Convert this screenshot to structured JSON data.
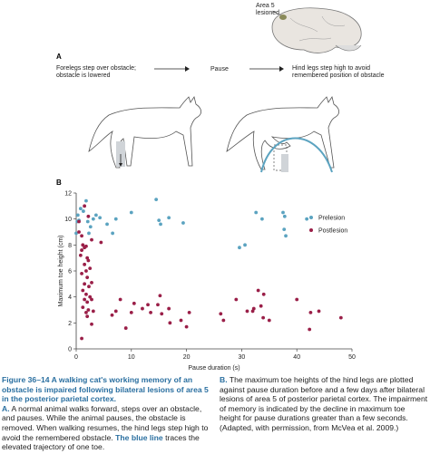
{
  "brain_label": [
    "Area 5",
    "lesioned"
  ],
  "panel_a": {
    "label": "A",
    "step1": [
      "Forelegs step over obstacle;",
      "obstacle is lowered"
    ],
    "pause": "Pause",
    "step2": [
      "Hind legs step high to avoid",
      "remembered position of obstacle"
    ]
  },
  "panel_b": {
    "label": "B"
  },
  "chart_data": {
    "type": "scatter",
    "x_label": "Pause duration (s)",
    "y_label": "Maximum toe height (cm)",
    "xlim": [
      0,
      50
    ],
    "ylim": [
      0,
      12
    ],
    "xticks": [
      0,
      10,
      20,
      30,
      40,
      50
    ],
    "yticks": [
      0,
      2,
      4,
      6,
      8,
      10,
      12
    ],
    "legend": "upper right",
    "series": [
      {
        "name": "Prelesion",
        "color": "#5ba3c0",
        "x": [
          0,
          0.2,
          0.3,
          0.5,
          0.8,
          1.3,
          1.8,
          2.1,
          2.3,
          2.6,
          3.1,
          3.6,
          4.3,
          5.6,
          6.6,
          7.2,
          10,
          14.5,
          15,
          15.3,
          16.8,
          19.4,
          29.6,
          30.6,
          32.6,
          33.7,
          37.5,
          37.7,
          37.8,
          38,
          41.8
        ],
        "y": [
          8.9,
          9.8,
          10.3,
          9.9,
          10.8,
          10.6,
          11.4,
          9.8,
          8.9,
          9.4,
          10,
          10.3,
          10.1,
          9.6,
          8.9,
          10,
          10.5,
          11.5,
          9.9,
          9.6,
          10.1,
          9.7,
          7.8,
          8,
          10.5,
          10,
          10.5,
          9.2,
          10.2,
          8.7,
          10
        ]
      },
      {
        "name": "Postlesion",
        "color": "#9a1f48",
        "x": [
          0.5,
          0.5,
          1,
          1.2,
          1,
          0.8,
          1.5,
          1.8,
          2,
          1.5,
          2.2,
          1.8,
          2.5,
          1,
          2,
          1.5,
          2.3,
          2.8,
          1.2,
          1.8,
          2.5,
          1.5,
          2,
          2.8,
          1.2,
          2.2,
          1.8,
          3.1,
          2,
          2.8,
          1,
          1.5,
          2.2,
          4.5,
          2.8,
          6.5,
          7.2,
          8,
          9,
          10,
          10.5,
          12,
          13,
          13.5,
          14.8,
          15.5,
          15.2,
          16.8,
          17,
          19,
          20.5,
          20,
          26.2,
          26.7,
          29,
          31,
          32,
          32.2,
          33,
          34,
          33.9,
          35,
          40,
          42.5,
          42.3,
          44,
          48,
          33.5
        ],
        "y": [
          9.8,
          9,
          8.7,
          8,
          7.6,
          7.2,
          7.8,
          7.9,
          7,
          6.5,
          6.8,
          6,
          6.2,
          5.8,
          5.5,
          5,
          4.8,
          5.1,
          4.5,
          4.2,
          4,
          3.8,
          3.6,
          3.8,
          3.2,
          3,
          2.8,
          2.9,
          2.5,
          1.9,
          0.8,
          11,
          10.2,
          8.2,
          8.4,
          2.6,
          2.9,
          3.8,
          1.6,
          2.8,
          3.5,
          3.1,
          3.4,
          2.8,
          3.4,
          2.7,
          4.1,
          3.1,
          2,
          2.2,
          2.8,
          1.7,
          2.7,
          2.2,
          3.8,
          2.9,
          2.9,
          3.1,
          4.5,
          4.2,
          2.4,
          2.2,
          3.8,
          2.8,
          1.5,
          2.9,
          2.4,
          3.3
        ]
      }
    ]
  },
  "caption": {
    "title": "Figure 36–14 A walking cat's working memory of an obstacle is impaired following bilateral lesions of area 5 in the posterior parietal cortex.",
    "a_label": "A.",
    "a_text1": "A normal animal walks forward, steps over an obstacle, and pauses. While the animal pauses, the obstacle is removed. When walking resumes, the hind legs step high to avoid the remembered obstacle.",
    "a_bold": "The blue line",
    "a_text2": "traces the elevated trajectory of one toe.",
    "b_label": "B.",
    "b_text": "The maximum toe heights of the hind legs are plotted against pause duration before and a few days after bilateral lesions of area 5 of posterior parietal cortex. The impairment of memory is indicated by the decline in maximum toe height for pause durations greater than a few seconds. (Adapted, with permission, from McVea et al. 2009.)"
  }
}
